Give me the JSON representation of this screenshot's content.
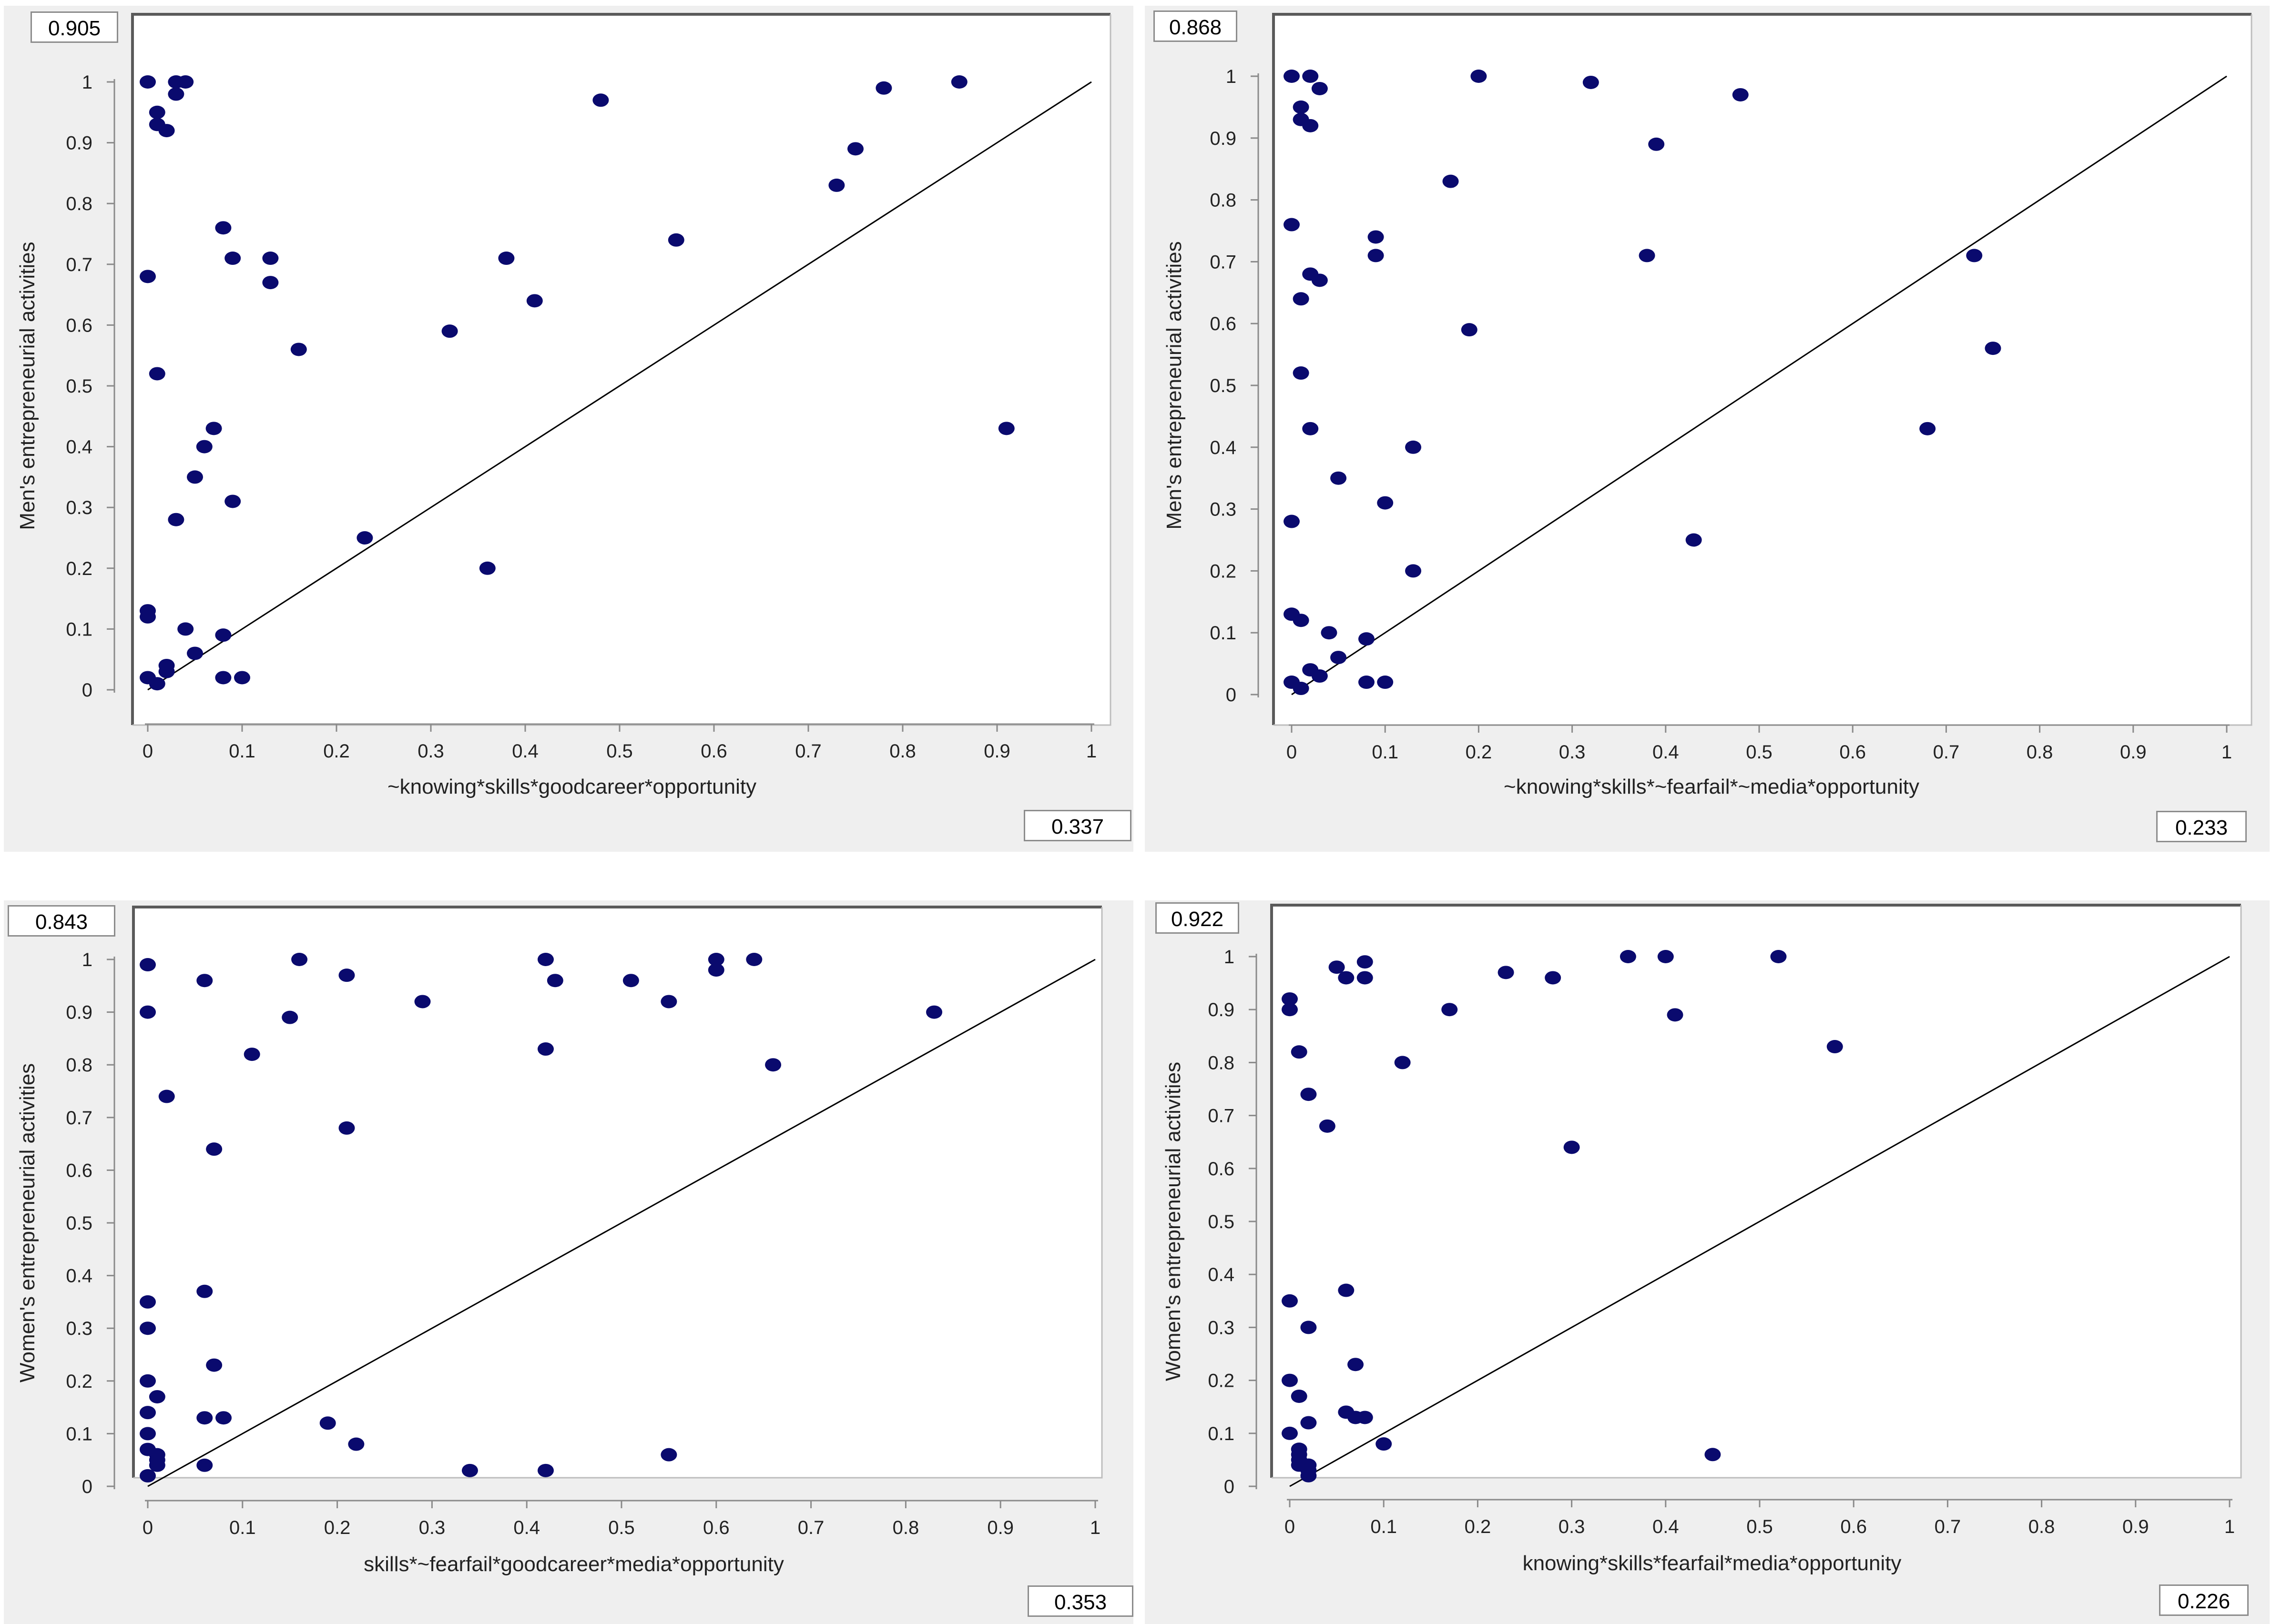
{
  "chart_data": [
    {
      "type": "scatter",
      "xlabel": "~knowing*skills*goodcareer*opportunity",
      "ylabel": "Men's entrepreneurial activities",
      "consistency": "0.905",
      "coverage": "0.337",
      "xlim": [
        0,
        1
      ],
      "ylim": [
        0,
        1
      ],
      "xticks": [
        "0",
        "0.1",
        "0.2",
        "0.3",
        "0.4",
        "0.5",
        "0.6",
        "0.7",
        "0.8",
        "0.9",
        "1"
      ],
      "yticks": [
        "0",
        "0.1",
        "0.2",
        "0.3",
        "0.4",
        "0.5",
        "0.6",
        "0.7",
        "0.8",
        "0.9",
        "1"
      ],
      "diagonal": true,
      "point_color": "#0a0a6e",
      "points": [
        [
          0,
          1
        ],
        [
          0.03,
          1
        ],
        [
          0.04,
          1
        ],
        [
          0.03,
          0.98
        ],
        [
          0.01,
          0.95
        ],
        [
          0.01,
          0.93
        ],
        [
          0.02,
          0.92
        ],
        [
          0.48,
          0.97
        ],
        [
          0.78,
          0.99
        ],
        [
          0.86,
          1
        ],
        [
          0.75,
          0.89
        ],
        [
          0.73,
          0.83
        ],
        [
          0.08,
          0.76
        ],
        [
          0.09,
          0.71
        ],
        [
          0.13,
          0.71
        ],
        [
          0.13,
          0.67
        ],
        [
          0,
          0.68
        ],
        [
          0.56,
          0.74
        ],
        [
          0.38,
          0.71
        ],
        [
          0.41,
          0.64
        ],
        [
          0.32,
          0.59
        ],
        [
          0.16,
          0.56
        ],
        [
          0.01,
          0.52
        ],
        [
          0.07,
          0.43
        ],
        [
          0.06,
          0.4
        ],
        [
          0.05,
          0.35
        ],
        [
          0.09,
          0.31
        ],
        [
          0.03,
          0.28
        ],
        [
          0.91,
          0.43
        ],
        [
          0.23,
          0.25
        ],
        [
          0.36,
          0.2
        ],
        [
          0,
          0.13
        ],
        [
          0,
          0.12
        ],
        [
          0.04,
          0.1
        ],
        [
          0.08,
          0.09
        ],
        [
          0.05,
          0.06
        ],
        [
          0.02,
          0.04
        ],
        [
          0.02,
          0.03
        ],
        [
          0,
          0.02
        ],
        [
          0.01,
          0.01
        ],
        [
          0.08,
          0.02
        ],
        [
          0.1,
          0.02
        ]
      ]
    },
    {
      "type": "scatter",
      "xlabel": "~knowing*skills*~fearfail*~media*opportunity",
      "ylabel": "Men's entrepreneurial activities",
      "consistency": "0.868",
      "coverage": "0.233",
      "xlim": [
        0,
        1
      ],
      "ylim": [
        0,
        1
      ],
      "xticks": [
        "0",
        "0.1",
        "0.2",
        "0.3",
        "0.4",
        "0.5",
        "0.6",
        "0.7",
        "0.8",
        "0.9",
        "1"
      ],
      "yticks": [
        "0",
        "0.1",
        "0.2",
        "0.3",
        "0.4",
        "0.5",
        "0.6",
        "0.7",
        "0.8",
        "0.9",
        "1"
      ],
      "diagonal": true,
      "point_color": "#0a0a6e",
      "points": [
        [
          0,
          1
        ],
        [
          0.02,
          1
        ],
        [
          0.2,
          1
        ],
        [
          0.32,
          0.99
        ],
        [
          0.48,
          0.97
        ],
        [
          0.03,
          0.98
        ],
        [
          0.01,
          0.95
        ],
        [
          0.01,
          0.93
        ],
        [
          0.02,
          0.92
        ],
        [
          0.39,
          0.89
        ],
        [
          0.17,
          0.83
        ],
        [
          0,
          0.76
        ],
        [
          0.09,
          0.74
        ],
        [
          0.09,
          0.71
        ],
        [
          0.38,
          0.71
        ],
        [
          0.73,
          0.71
        ],
        [
          0.02,
          0.68
        ],
        [
          0.03,
          0.67
        ],
        [
          0.01,
          0.64
        ],
        [
          0.19,
          0.59
        ],
        [
          0.75,
          0.56
        ],
        [
          0.01,
          0.52
        ],
        [
          0.02,
          0.43
        ],
        [
          0.68,
          0.43
        ],
        [
          0.13,
          0.4
        ],
        [
          0.05,
          0.35
        ],
        [
          0.1,
          0.31
        ],
        [
          0,
          0.28
        ],
        [
          0.43,
          0.25
        ],
        [
          0.13,
          0.2
        ],
        [
          0,
          0.13
        ],
        [
          0.01,
          0.12
        ],
        [
          0.04,
          0.1
        ],
        [
          0.08,
          0.09
        ],
        [
          0.05,
          0.06
        ],
        [
          0.02,
          0.04
        ],
        [
          0.03,
          0.03
        ],
        [
          0,
          0.02
        ],
        [
          0.01,
          0.01
        ],
        [
          0.08,
          0.02
        ],
        [
          0.1,
          0.02
        ]
      ]
    },
    {
      "type": "scatter",
      "xlabel": "skills*~fearfail*goodcareer*media*opportunity",
      "ylabel": "Women's entrepreneurial activities",
      "consistency": "0.843",
      "coverage": "0.353",
      "xlim": [
        0,
        1
      ],
      "ylim": [
        0,
        1
      ],
      "xticks": [
        "0",
        "0.1",
        "0.2",
        "0.3",
        "0.4",
        "0.5",
        "0.6",
        "0.7",
        "0.8",
        "0.9",
        "1"
      ],
      "yticks": [
        "0",
        "0.1",
        "0.2",
        "0.3",
        "0.4",
        "0.5",
        "0.6",
        "0.7",
        "0.8",
        "0.9",
        "1"
      ],
      "diagonal": true,
      "point_color": "#0a0a6e",
      "points": [
        [
          0,
          0.99
        ],
        [
          0.16,
          1
        ],
        [
          0.42,
          1
        ],
        [
          0.6,
          1
        ],
        [
          0.64,
          1
        ],
        [
          0.6,
          0.98
        ],
        [
          0.06,
          0.96
        ],
        [
          0.21,
          0.97
        ],
        [
          0.43,
          0.96
        ],
        [
          0.51,
          0.96
        ],
        [
          0.29,
          0.92
        ],
        [
          0.55,
          0.92
        ],
        [
          0,
          0.9
        ],
        [
          0.15,
          0.89
        ],
        [
          0.83,
          0.9
        ],
        [
          0.42,
          0.83
        ],
        [
          0.11,
          0.82
        ],
        [
          0.66,
          0.8
        ],
        [
          0.02,
          0.74
        ],
        [
          0.21,
          0.68
        ],
        [
          0.07,
          0.64
        ],
        [
          0.06,
          0.37
        ],
        [
          0,
          0.35
        ],
        [
          0,
          0.3
        ],
        [
          0.07,
          0.23
        ],
        [
          0,
          0.2
        ],
        [
          0.01,
          0.17
        ],
        [
          0,
          0.14
        ],
        [
          0.06,
          0.13
        ],
        [
          0.08,
          0.13
        ],
        [
          0.19,
          0.12
        ],
        [
          0,
          0.1
        ],
        [
          0.22,
          0.08
        ],
        [
          0,
          0.07
        ],
        [
          0.01,
          0.06
        ],
        [
          0.01,
          0.05
        ],
        [
          0.01,
          0.04
        ],
        [
          0.06,
          0.04
        ],
        [
          0.55,
          0.06
        ],
        [
          0.34,
          0.03
        ],
        [
          0.42,
          0.03
        ],
        [
          0,
          0.02
        ]
      ]
    },
    {
      "type": "scatter",
      "xlabel": "knowing*skills*fearfail*media*opportunity",
      "ylabel": "Women's entrepreneurial activities",
      "consistency": "0.922",
      "coverage": "0.226",
      "xlim": [
        0,
        1
      ],
      "ylim": [
        0,
        1
      ],
      "xticks": [
        "0",
        "0.1",
        "0.2",
        "0.3",
        "0.4",
        "0.5",
        "0.6",
        "0.7",
        "0.8",
        "0.9",
        "1"
      ],
      "yticks": [
        "0",
        "0.1",
        "0.2",
        "0.3",
        "0.4",
        "0.5",
        "0.6",
        "0.7",
        "0.8",
        "0.9",
        "1"
      ],
      "diagonal": true,
      "point_color": "#0a0a6e",
      "points": [
        [
          0.36,
          1
        ],
        [
          0.4,
          1
        ],
        [
          0.52,
          1
        ],
        [
          0.05,
          0.98
        ],
        [
          0.08,
          0.99
        ],
        [
          0.06,
          0.96
        ],
        [
          0.08,
          0.96
        ],
        [
          0.23,
          0.97
        ],
        [
          0.28,
          0.96
        ],
        [
          0,
          0.92
        ],
        [
          0,
          0.9
        ],
        [
          0.17,
          0.9
        ],
        [
          0.41,
          0.89
        ],
        [
          0.58,
          0.83
        ],
        [
          0.01,
          0.82
        ],
        [
          0.12,
          0.8
        ],
        [
          0.02,
          0.74
        ],
        [
          0.04,
          0.68
        ],
        [
          0.3,
          0.64
        ],
        [
          0.06,
          0.37
        ],
        [
          0,
          0.35
        ],
        [
          0.02,
          0.3
        ],
        [
          0.07,
          0.23
        ],
        [
          0,
          0.2
        ],
        [
          0.01,
          0.17
        ],
        [
          0.06,
          0.14
        ],
        [
          0.07,
          0.13
        ],
        [
          0.08,
          0.13
        ],
        [
          0.02,
          0.12
        ],
        [
          0,
          0.1
        ],
        [
          0.1,
          0.08
        ],
        [
          0.01,
          0.07
        ],
        [
          0.01,
          0.06
        ],
        [
          0.45,
          0.06
        ],
        [
          0.01,
          0.05
        ],
        [
          0.01,
          0.04
        ],
        [
          0.02,
          0.04
        ],
        [
          0.02,
          0.03
        ],
        [
          0.02,
          0.02
        ]
      ]
    }
  ]
}
